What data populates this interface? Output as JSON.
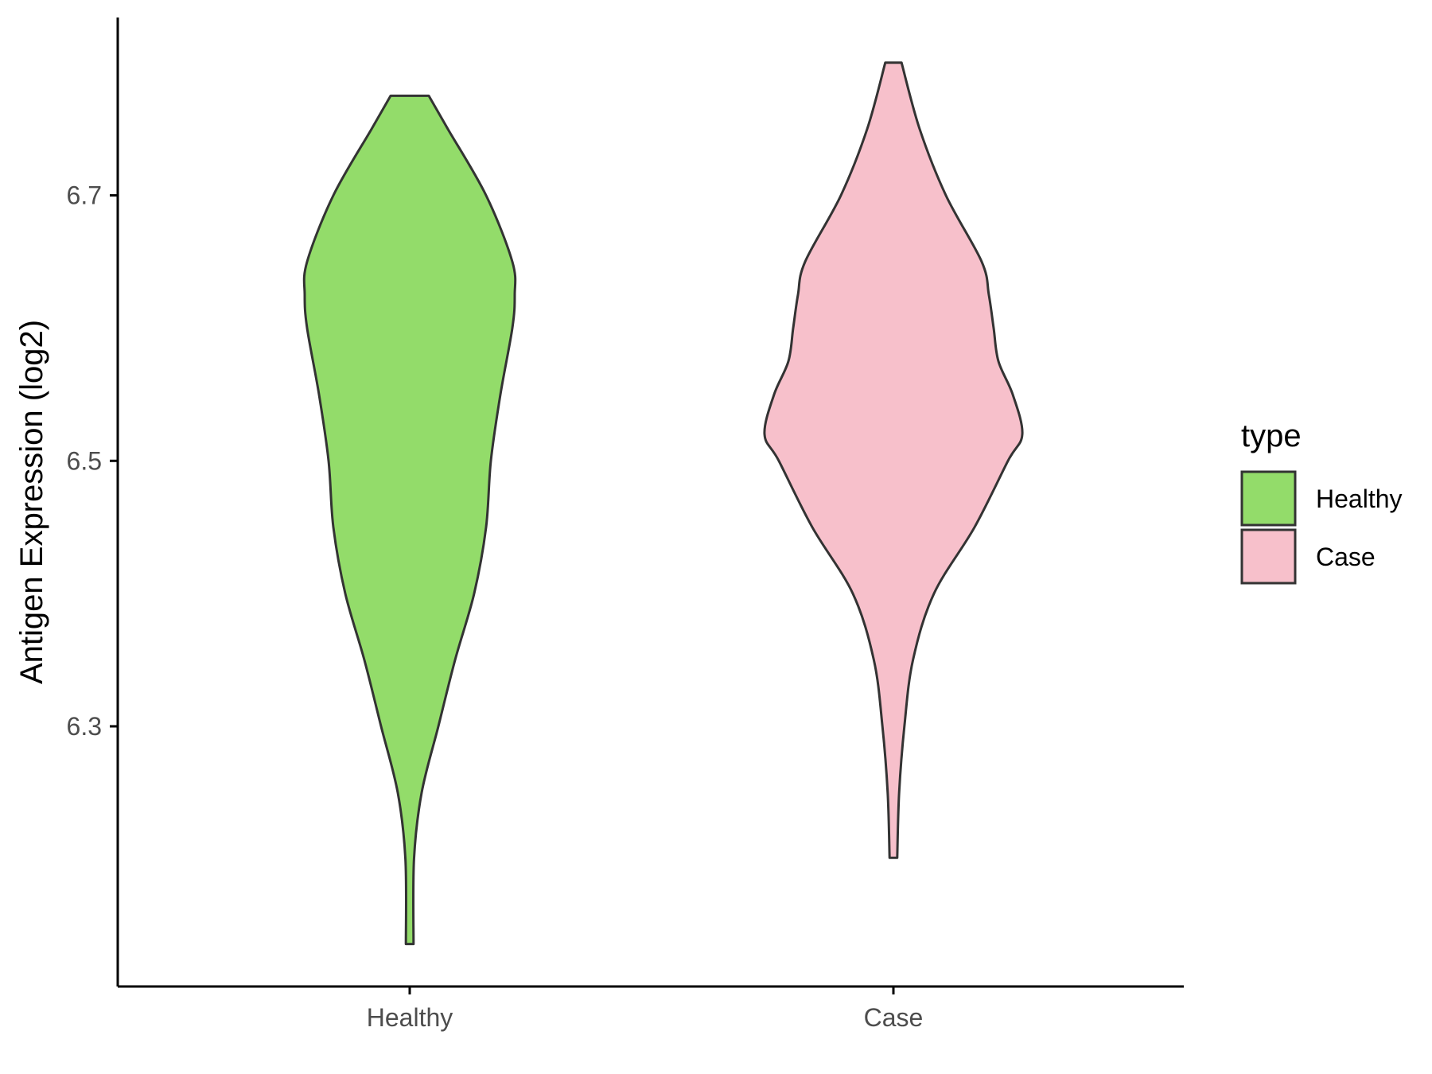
{
  "chart_data": {
    "type": "violin",
    "categories": [
      "Healthy",
      "Case"
    ],
    "ylabel": "Antigen Expression (log2)",
    "xlabel": "",
    "yticks": [
      6.3,
      6.5,
      6.7
    ],
    "ylim": [
      6.104,
      6.834
    ],
    "legend": {
      "title": "type",
      "position": "right"
    },
    "series": [
      {
        "name": "Healthy",
        "color": "#93dc6a",
        "min": 6.136,
        "max": 6.775,
        "density": [
          [
            6.136,
            0.016
          ],
          [
            6.2,
            0.018
          ],
          [
            6.25,
            0.05
          ],
          [
            6.3,
            0.12
          ],
          [
            6.35,
            0.19
          ],
          [
            6.4,
            0.27
          ],
          [
            6.45,
            0.32
          ],
          [
            6.5,
            0.34
          ],
          [
            6.55,
            0.38
          ],
          [
            6.6,
            0.43
          ],
          [
            6.625,
            0.44
          ],
          [
            6.65,
            0.43
          ],
          [
            6.7,
            0.32
          ],
          [
            6.75,
            0.16
          ],
          [
            6.775,
            0.08
          ]
        ]
      },
      {
        "name": "Case",
        "color": "#f7c0cb",
        "min": 6.201,
        "max": 6.8,
        "density": [
          [
            6.201,
            0.016
          ],
          [
            6.25,
            0.024
          ],
          [
            6.3,
            0.046
          ],
          [
            6.35,
            0.082
          ],
          [
            6.4,
            0.17
          ],
          [
            6.45,
            0.34
          ],
          [
            6.5,
            0.48
          ],
          [
            6.52,
            0.54
          ],
          [
            6.55,
            0.5
          ],
          [
            6.575,
            0.44
          ],
          [
            6.6,
            0.42
          ],
          [
            6.625,
            0.4
          ],
          [
            6.65,
            0.37
          ],
          [
            6.7,
            0.22
          ],
          [
            6.75,
            0.11
          ],
          [
            6.8,
            0.034
          ]
        ]
      }
    ]
  }
}
